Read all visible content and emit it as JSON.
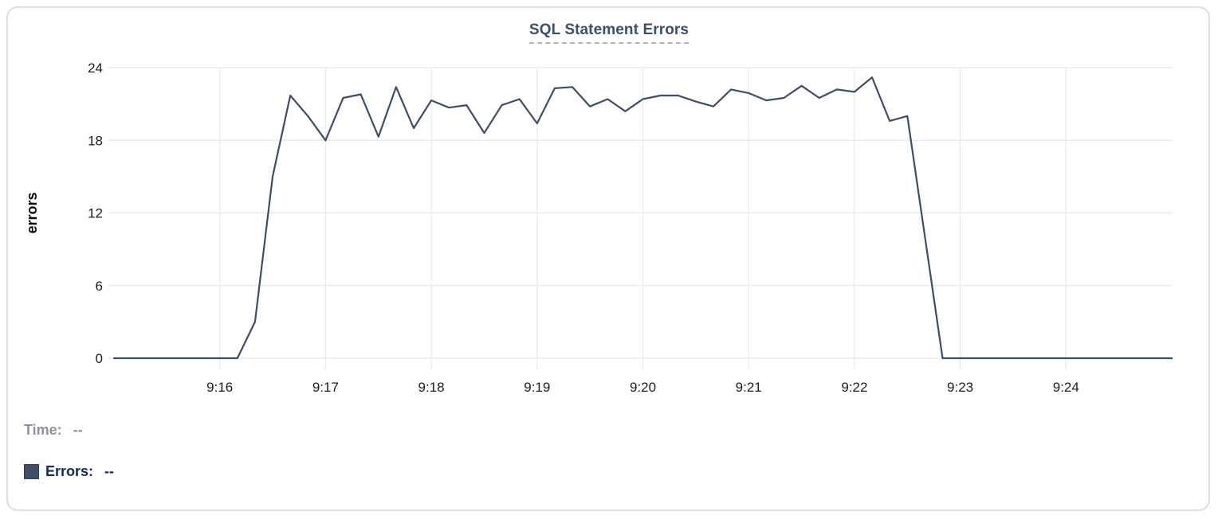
{
  "chart": {
    "title": "SQL Statement Errors"
  },
  "tooltip": {
    "time_label": "Time:",
    "time_value": "--",
    "errors_label": "Errors:",
    "errors_value": "--"
  },
  "colors": {
    "line": "#3e4d68",
    "swatch": "#3e4d68",
    "title": "#3a4f6d",
    "title_underline": "#a9b3c9",
    "grid_horizontal": "#e8e8e8",
    "grid_vertical": "#ececec",
    "tick_text": "#1c1c1c",
    "time_text": "#8e939b",
    "errors_text": "#1a2752"
  },
  "chart_data": {
    "type": "line",
    "title": "SQL Statement Errors",
    "xlabel": "",
    "ylabel": "errors",
    "series_name": "Errors",
    "grid": "on",
    "legend_position": "bottom-left",
    "ylim": [
      0,
      24
    ],
    "y_ticks": [
      0,
      6,
      12,
      18,
      24
    ],
    "x_ticks": [
      "9:16",
      "9:17",
      "9:18",
      "9:19",
      "9:20",
      "9:21",
      "9:22",
      "9:23",
      "9:24"
    ],
    "x": [
      "9:15:00",
      "9:15:10",
      "9:15:20",
      "9:15:30",
      "9:15:40",
      "9:15:50",
      "9:16:00",
      "9:16:10",
      "9:16:20",
      "9:16:30",
      "9:16:40",
      "9:16:50",
      "9:17:00",
      "9:17:10",
      "9:17:20",
      "9:17:30",
      "9:17:40",
      "9:17:50",
      "9:18:00",
      "9:18:10",
      "9:18:20",
      "9:18:30",
      "9:18:40",
      "9:18:50",
      "9:19:00",
      "9:19:10",
      "9:19:20",
      "9:19:30",
      "9:19:40",
      "9:19:50",
      "9:20:00",
      "9:20:10",
      "9:20:20",
      "9:20:30",
      "9:20:40",
      "9:20:50",
      "9:21:00",
      "9:21:10",
      "9:21:20",
      "9:21:30",
      "9:21:40",
      "9:21:50",
      "9:22:00",
      "9:22:10",
      "9:22:20",
      "9:22:30",
      "9:22:40",
      "9:22:50",
      "9:23:00",
      "9:23:10",
      "9:23:20",
      "9:23:30",
      "9:23:40",
      "9:23:50",
      "9:24:00",
      "9:24:10",
      "9:24:20",
      "9:24:30",
      "9:24:40",
      "9:24:50",
      "9:25:00"
    ],
    "values": [
      0,
      0,
      0,
      0,
      0,
      0,
      0,
      0,
      3,
      15,
      21.7,
      20,
      18,
      21.5,
      21.8,
      18.3,
      22.4,
      19,
      21.3,
      20.7,
      20.9,
      18.6,
      20.9,
      21.4,
      19.4,
      22.3,
      22.4,
      20.8,
      21.4,
      20.4,
      21.4,
      21.7,
      21.7,
      21.2,
      20.8,
      22.2,
      21.9,
      21.3,
      21.5,
      22.5,
      21.5,
      22.2,
      22.0,
      23.2,
      19.6,
      20.0,
      10,
      0,
      0,
      0,
      0,
      0,
      0,
      0,
      0,
      0,
      0,
      0,
      0,
      0,
      0
    ]
  }
}
